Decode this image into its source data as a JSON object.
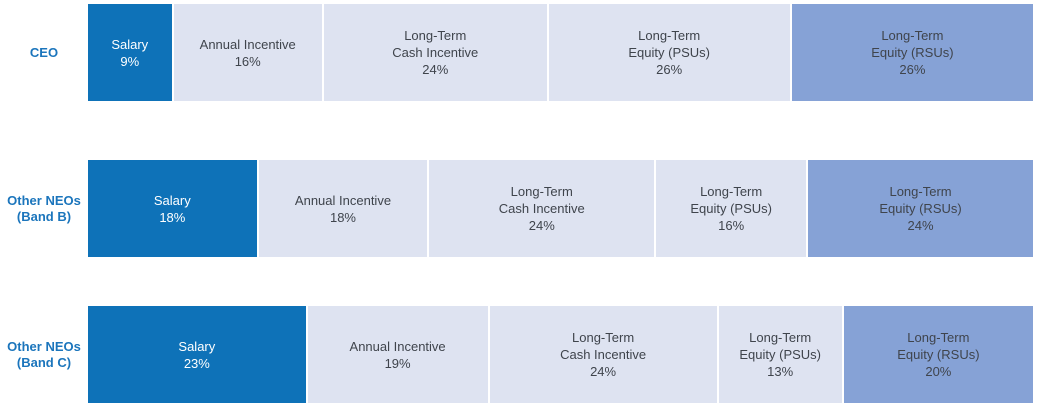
{
  "colors": {
    "salary_fill": "#0e72b8",
    "light_fill": "#dee3f1",
    "rsu_fill": "#86a2d6",
    "row_label_text": "#1b75bc",
    "segment_text": "#3f444c",
    "salary_text": "#ffffff"
  },
  "rows": [
    {
      "label_lines": [
        "CEO"
      ],
      "segments": [
        {
          "name": "salary",
          "value": 9,
          "lines": [
            "Salary"
          ],
          "pct": "9%"
        },
        {
          "name": "annual-incentive",
          "value": 16,
          "lines": [
            "Annual Incentive"
          ],
          "pct": "16%"
        },
        {
          "name": "long-term-cash-incentive",
          "value": 24,
          "lines": [
            "Long-Term",
            "Cash Incentive"
          ],
          "pct": "24%"
        },
        {
          "name": "long-term-equity-psus",
          "value": 26,
          "lines": [
            "Long-Term",
            "Equity (PSUs)"
          ],
          "pct": "26%"
        },
        {
          "name": "long-term-equity-rsus",
          "value": 26,
          "lines": [
            "Long-Term",
            "Equity (RSUs)"
          ],
          "pct": "26%"
        }
      ]
    },
    {
      "label_lines": [
        "Other NEOs",
        "(Band B)"
      ],
      "segments": [
        {
          "name": "salary",
          "value": 18,
          "lines": [
            "Salary"
          ],
          "pct": "18%"
        },
        {
          "name": "annual-incentive",
          "value": 18,
          "lines": [
            "Annual Incentive"
          ],
          "pct": "18%"
        },
        {
          "name": "long-term-cash-incentive",
          "value": 24,
          "lines": [
            "Long-Term",
            "Cash Incentive"
          ],
          "pct": "24%"
        },
        {
          "name": "long-term-equity-psus",
          "value": 16,
          "lines": [
            "Long-Term",
            "Equity (PSUs)"
          ],
          "pct": "16%"
        },
        {
          "name": "long-term-equity-rsus",
          "value": 24,
          "lines": [
            "Long-Term",
            "Equity (RSUs)"
          ],
          "pct": "24%"
        }
      ]
    },
    {
      "label_lines": [
        "Other NEOs",
        "(Band C)"
      ],
      "segments": [
        {
          "name": "salary",
          "value": 23,
          "lines": [
            "Salary"
          ],
          "pct": "23%"
        },
        {
          "name": "annual-incentive",
          "value": 19,
          "lines": [
            "Annual Incentive"
          ],
          "pct": "19%"
        },
        {
          "name": "long-term-cash-incentive",
          "value": 24,
          "lines": [
            "Long-Term",
            "Cash Incentive"
          ],
          "pct": "24%"
        },
        {
          "name": "long-term-equity-psus",
          "value": 13,
          "lines": [
            "Long-Term",
            "Equity (PSUs)"
          ],
          "pct": "13%"
        },
        {
          "name": "long-term-equity-rsus",
          "value": 20,
          "lines": [
            "Long-Term",
            "Equity (RSUs)"
          ],
          "pct": "20%"
        }
      ]
    }
  ],
  "chart_data": {
    "type": "bar",
    "orientation": "horizontal-stacked",
    "units": "%",
    "categories": [
      "CEO",
      "Other NEOs (Band B)",
      "Other NEOs (Band C)"
    ],
    "series": [
      {
        "name": "Salary",
        "values": [
          9,
          18,
          23
        ]
      },
      {
        "name": "Annual Incentive",
        "values": [
          16,
          18,
          19
        ]
      },
      {
        "name": "Long-Term Cash Incentive",
        "values": [
          24,
          24,
          24
        ]
      },
      {
        "name": "Long-Term Equity (PSUs)",
        "values": [
          26,
          16,
          13
        ]
      },
      {
        "name": "Long-Term Equity (RSUs)",
        "values": [
          26,
          24,
          20
        ]
      }
    ],
    "title": "",
    "xlabel": "",
    "ylabel": "",
    "legend": false,
    "grid": false,
    "data_labels_inside_segments": true
  }
}
